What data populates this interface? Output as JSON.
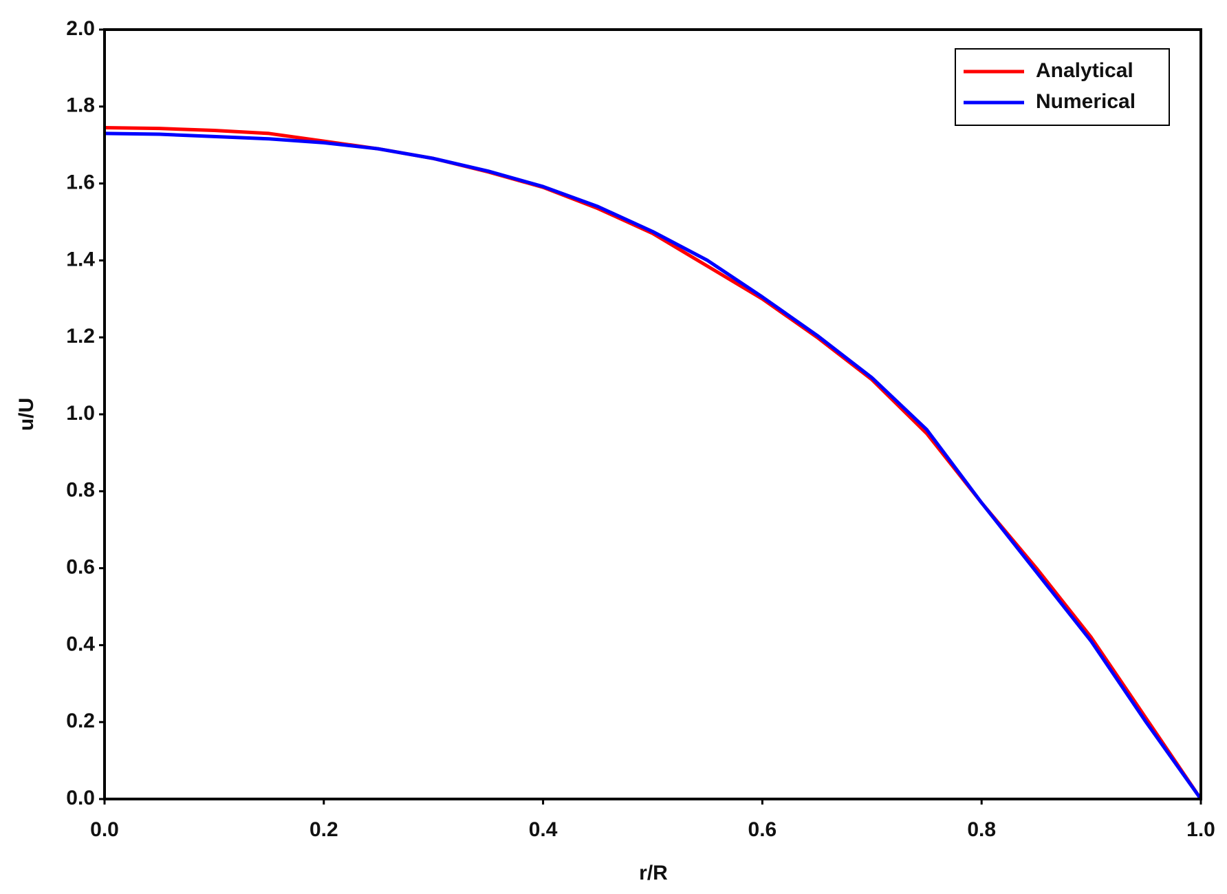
{
  "chart_data": {
    "type": "line",
    "xlabel": "r/R",
    "ylabel": "u/U",
    "x": [
      0,
      0.05,
      0.1,
      0.15,
      0.2,
      0.25,
      0.3,
      0.35,
      0.4,
      0.45,
      0.5,
      0.55,
      0.6,
      0.65,
      0.7,
      0.75,
      0.8,
      0.85,
      0.9,
      0.95,
      1.0
    ],
    "series": [
      {
        "name": "Analytical",
        "color": "#ff0000",
        "values": [
          1.745,
          1.743,
          1.738,
          1.73,
          1.71,
          1.69,
          1.665,
          1.63,
          1.59,
          1.535,
          1.47,
          1.385,
          1.3,
          1.2,
          1.09,
          0.95,
          0.77,
          0.6,
          0.42,
          0.21,
          0
        ]
      },
      {
        "name": "Numerical",
        "color": "#0000ff",
        "values": [
          1.73,
          1.728,
          1.722,
          1.716,
          1.706,
          1.69,
          1.665,
          1.632,
          1.592,
          1.54,
          1.475,
          1.4,
          1.305,
          1.205,
          1.095,
          0.96,
          0.77,
          0.59,
          0.41,
          0.2,
          0
        ]
      }
    ],
    "xlim": [
      0,
      1
    ],
    "ylim": [
      0,
      2
    ],
    "xticks": [
      {
        "value": 0,
        "label": "0.0"
      },
      {
        "value": 0.2,
        "label": "0.2"
      },
      {
        "value": 0.4,
        "label": "0.4"
      },
      {
        "value": 0.6,
        "label": "0.6"
      },
      {
        "value": 0.8,
        "label": "0.8"
      },
      {
        "value": 1,
        "label": "1.0"
      }
    ],
    "yticks": [
      {
        "value": 0,
        "label": "0.0"
      },
      {
        "value": 0.2,
        "label": "0.2"
      },
      {
        "value": 0.4,
        "label": "0.4"
      },
      {
        "value": 0.6,
        "label": "0.6"
      },
      {
        "value": 0.8,
        "label": "0.8"
      },
      {
        "value": 1,
        "label": "1.0"
      },
      {
        "value": 1.2,
        "label": "1.2"
      },
      {
        "value": 1.4,
        "label": "1.4"
      },
      {
        "value": 1.6,
        "label": "1.6"
      },
      {
        "value": 1.8,
        "label": "1.8"
      },
      {
        "value": 2,
        "label": "2.0"
      }
    ],
    "grid": false,
    "legend": "upper right"
  }
}
